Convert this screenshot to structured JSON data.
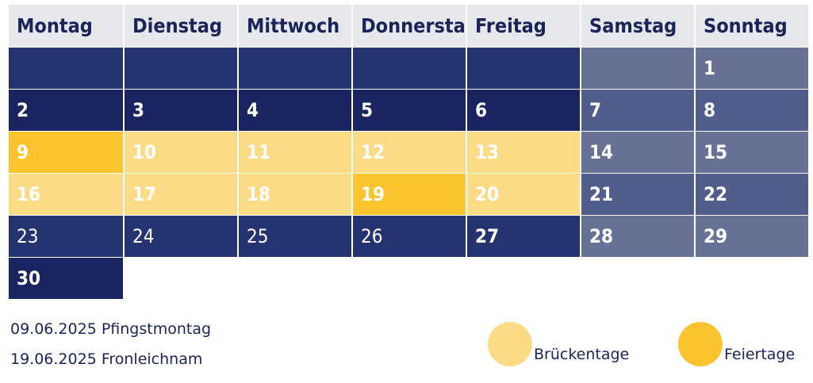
{
  "colors": {
    "bridge": "#fcdb87",
    "holiday": "#fbc42f",
    "navy": "#1a2460"
  },
  "headers": [
    "Montag",
    "Dienstag",
    "Mittwoch",
    "Donnerstag",
    "Freitag",
    "Samstag",
    "Sonntag"
  ],
  "rows": [
    [
      {
        "d": "",
        "t": "mid"
      },
      {
        "d": "",
        "t": "mid"
      },
      {
        "d": "",
        "t": "mid"
      },
      {
        "d": "",
        "t": "mid"
      },
      {
        "d": "",
        "t": "mid"
      },
      {
        "d": "",
        "t": "wk1"
      },
      {
        "d": "1",
        "t": "wk1"
      }
    ],
    [
      {
        "d": "2",
        "t": "dark"
      },
      {
        "d": "3",
        "t": "dark"
      },
      {
        "d": "4",
        "t": "dark"
      },
      {
        "d": "5",
        "t": "dark"
      },
      {
        "d": "6",
        "t": "dark"
      },
      {
        "d": "7",
        "t": "wk2"
      },
      {
        "d": "8",
        "t": "wk2"
      }
    ],
    [
      {
        "d": "9",
        "t": "holi"
      },
      {
        "d": "10",
        "t": "bridge"
      },
      {
        "d": "11",
        "t": "bridge"
      },
      {
        "d": "12",
        "t": "bridge"
      },
      {
        "d": "13",
        "t": "bridge"
      },
      {
        "d": "14",
        "t": "wk1"
      },
      {
        "d": "15",
        "t": "wk1"
      }
    ],
    [
      {
        "d": "16",
        "t": "bridge"
      },
      {
        "d": "17",
        "t": "bridge"
      },
      {
        "d": "18",
        "t": "bridge"
      },
      {
        "d": "19",
        "t": "holi"
      },
      {
        "d": "20",
        "t": "bridge"
      },
      {
        "d": "21",
        "t": "wk2"
      },
      {
        "d": "22",
        "t": "wk2"
      }
    ],
    [
      {
        "d": "23",
        "t": "mid",
        "light": true
      },
      {
        "d": "24",
        "t": "mid",
        "light": true
      },
      {
        "d": "25",
        "t": "mid",
        "light": true
      },
      {
        "d": "26",
        "t": "mid",
        "light": true
      },
      {
        "d": "27",
        "t": "mid"
      },
      {
        "d": "28",
        "t": "wk1"
      },
      {
        "d": "29",
        "t": "wk1"
      }
    ],
    [
      {
        "d": "30",
        "t": "dark"
      }
    ]
  ],
  "notes": [
    "09.06.2025 Pfingstmontag",
    "19.06.2025 Fronleichnam"
  ],
  "legend": [
    {
      "label": "Brückentage",
      "color": "#fcdb87"
    },
    {
      "label": "Feiertage",
      "color": "#fbc42f"
    }
  ]
}
